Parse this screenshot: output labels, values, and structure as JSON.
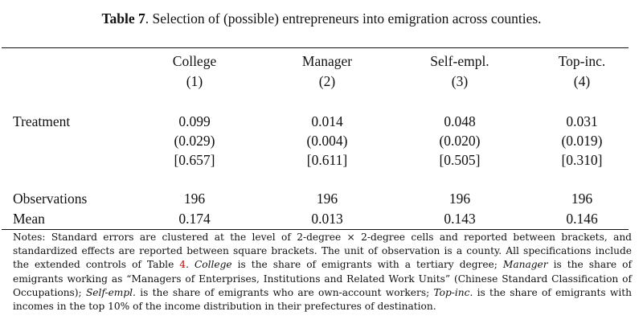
{
  "caption": {
    "label": "Table 7",
    "text": ". Selection of (possible) entrepreneurs into emigration across counties."
  },
  "columns": [
    {
      "name": "College",
      "num": "(1)"
    },
    {
      "name": "Manager",
      "num": "(2)"
    },
    {
      "name": "Self-empl.",
      "num": "(3)"
    },
    {
      "name": "Top-inc.",
      "num": "(4)"
    }
  ],
  "rows": {
    "treatment_label": "Treatment",
    "coef": [
      "0.099",
      "0.014",
      "0.048",
      "0.031"
    ],
    "se": [
      "(0.029)",
      "(0.004)",
      "(0.020)",
      "(0.019)"
    ],
    "std": [
      "[0.657]",
      "[0.611]",
      "[0.505]",
      "[0.310]"
    ],
    "obs_label": "Observations",
    "obs": [
      "196",
      "196",
      "196",
      "196"
    ],
    "mean_label": "Mean",
    "mean": [
      "0.174",
      "0.013",
      "0.143",
      "0.146"
    ]
  },
  "notes": {
    "p1": "Notes: Standard errors are clustered at the level of 2-degree × 2-degree cells and reported between brackets, and standardized effects are reported between square brackets. The unit of observation is a county. All specifications include the extended controls of Table ",
    "table_ref": "4",
    "p2": ". ",
    "college": "College",
    "p3": " is the share of emigrants with a tertiary degree; ",
    "manager": "Manager",
    "p4": " is the share of emigrants working as “Managers of Enterprises, Institutions and Related Work Units” (Chinese Standard Classification of Occupations); ",
    "selfempl": "Self-empl.",
    "p5": " is the share of emigrants who are own-account workers; ",
    "topinc": "Top-inc.",
    "p6": " is the share of emigrants with incomes in the top 10% of the income distribution in their prefectures of destination."
  }
}
